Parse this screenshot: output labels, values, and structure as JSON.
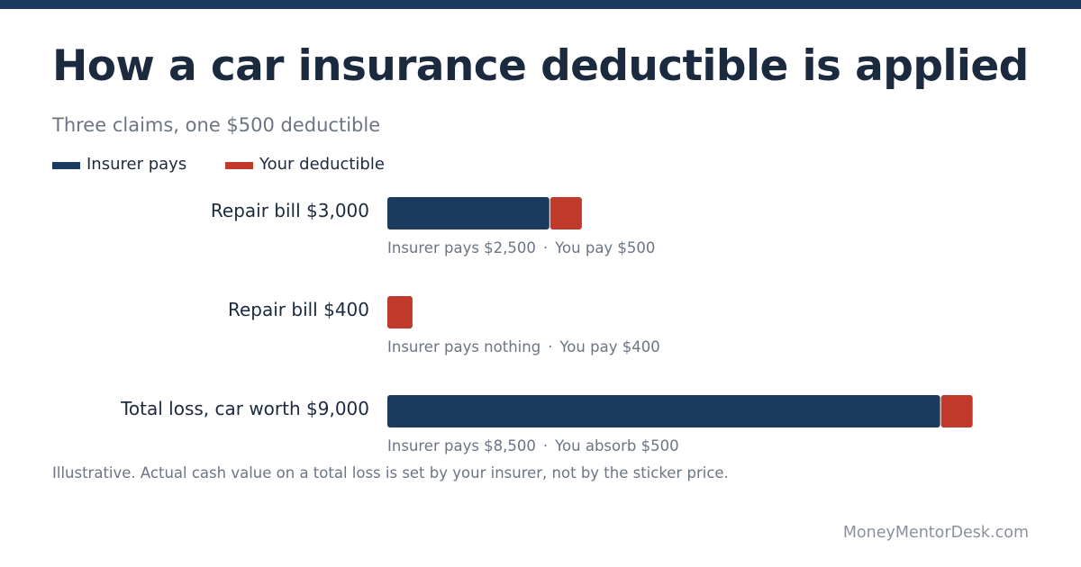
{
  "title": "How a car insurance deductible is applied",
  "subtitle": "Three claims, one $500 deductible",
  "legend": {
    "insurer_label": "Insurer pays",
    "deductible_label": "Your deductible"
  },
  "colors": {
    "insurer": "#1c3a5e",
    "deductible": "#c0392b",
    "top_strip": "#1c3a5e"
  },
  "chart_data": {
    "type": "bar",
    "orientation": "horizontal",
    "stacked": true,
    "categories": [
      "Repair bill $3,000",
      "Repair bill $400",
      "Total loss, car worth $9,000"
    ],
    "series": [
      {
        "name": "Insurer pays",
        "values": [
          2500,
          0,
          8500
        ]
      },
      {
        "name": "Your deductible",
        "values": [
          500,
          400,
          500
        ]
      }
    ],
    "xlim": [
      0,
      9000
    ],
    "grid": false,
    "legend_position": "top-left",
    "annotations": [
      {
        "insurer": "Insurer pays $2,500",
        "you": "You pay $500"
      },
      {
        "insurer": "Insurer pays nothing",
        "you": "You pay $400"
      },
      {
        "insurer": "Insurer pays $8,500",
        "you": "You absorb $500"
      }
    ]
  },
  "separator": "·",
  "footnote": "Illustrative. Actual cash value on a total loss is set by your insurer, not by the sticker price.",
  "brand": "MoneyMentorDesk.com"
}
